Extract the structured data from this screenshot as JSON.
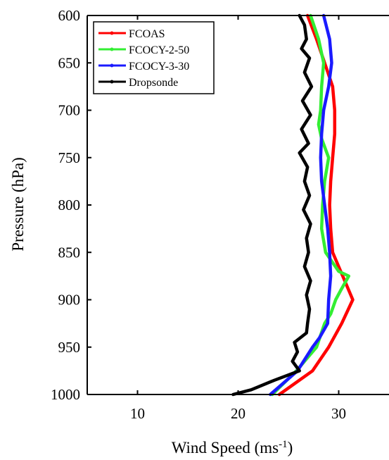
{
  "chart_data": {
    "type": "line",
    "title": "",
    "xlabel": "Wind Speed (ms",
    "xlabel_sup": "-1",
    "xlabel_suffix": ")",
    "ylabel": "Pressure (hPa)",
    "xlim": [
      5,
      35
    ],
    "ylim": [
      1000,
      600
    ],
    "y_reversed": true,
    "xticks": [
      10,
      20,
      30
    ],
    "yticks": [
      600,
      650,
      700,
      750,
      800,
      850,
      900,
      950,
      1000
    ],
    "grid": false,
    "legend_position": "top-left",
    "series": [
      {
        "name": "FCOAS",
        "color": "#ff0000",
        "points": [
          [
            26.9,
            600
          ],
          [
            27.8,
            625
          ],
          [
            28.6,
            650
          ],
          [
            29.4,
            675
          ],
          [
            29.6,
            700
          ],
          [
            29.6,
            725
          ],
          [
            29.4,
            750
          ],
          [
            29.2,
            775
          ],
          [
            29.1,
            800
          ],
          [
            29.2,
            825
          ],
          [
            29.4,
            850
          ],
          [
            30.4,
            875
          ],
          [
            31.4,
            900
          ],
          [
            30.3,
            925
          ],
          [
            29.0,
            950
          ],
          [
            27.4,
            975
          ],
          [
            24.1,
            1000
          ]
        ]
      },
      {
        "name": "FCOCY-2-50",
        "color": "#33ee33",
        "points": [
          [
            27.2,
            600
          ],
          [
            28.0,
            625
          ],
          [
            28.5,
            650
          ],
          [
            28.3,
            675
          ],
          [
            28.2,
            700
          ],
          [
            28.0,
            715
          ],
          [
            28.3,
            730
          ],
          [
            29.0,
            750
          ],
          [
            28.6,
            775
          ],
          [
            28.4,
            800
          ],
          [
            28.3,
            825
          ],
          [
            28.7,
            850
          ],
          [
            30.0,
            870
          ],
          [
            31.0,
            875
          ],
          [
            30.2,
            890
          ],
          [
            29.7,
            900
          ],
          [
            29.2,
            915
          ],
          [
            28.6,
            925
          ],
          [
            27.8,
            950
          ],
          [
            25.8,
            975
          ],
          [
            23.4,
            1000
          ]
        ]
      },
      {
        "name": "FCOCY-3-30",
        "color": "#1a1aff",
        "points": [
          [
            28.5,
            600
          ],
          [
            29.1,
            625
          ],
          [
            29.3,
            650
          ],
          [
            29.0,
            675
          ],
          [
            28.5,
            700
          ],
          [
            28.3,
            725
          ],
          [
            28.2,
            750
          ],
          [
            28.3,
            775
          ],
          [
            28.6,
            800
          ],
          [
            28.9,
            825
          ],
          [
            29.1,
            850
          ],
          [
            29.2,
            875
          ],
          [
            29.0,
            900
          ],
          [
            28.9,
            925
          ],
          [
            28.1,
            940
          ],
          [
            27.4,
            950
          ],
          [
            25.9,
            975
          ],
          [
            23.2,
            1000
          ]
        ]
      },
      {
        "name": "Dropsonde",
        "color": "#000000",
        "points": [
          [
            26.1,
            600
          ],
          [
            26.6,
            610
          ],
          [
            26.8,
            625
          ],
          [
            26.3,
            635
          ],
          [
            27.1,
            645
          ],
          [
            26.6,
            660
          ],
          [
            27.3,
            675
          ],
          [
            26.4,
            690
          ],
          [
            27.2,
            705
          ],
          [
            26.3,
            720
          ],
          [
            27.0,
            735
          ],
          [
            26.1,
            745
          ],
          [
            26.9,
            760
          ],
          [
            26.6,
            775
          ],
          [
            27.1,
            790
          ],
          [
            26.5,
            805
          ],
          [
            27.2,
            820
          ],
          [
            26.8,
            835
          ],
          [
            27.0,
            850
          ],
          [
            26.6,
            865
          ],
          [
            27.2,
            880
          ],
          [
            26.8,
            895
          ],
          [
            27.1,
            910
          ],
          [
            26.9,
            925
          ],
          [
            26.8,
            935
          ],
          [
            25.6,
            945
          ],
          [
            25.9,
            955
          ],
          [
            25.4,
            965
          ],
          [
            26.1,
            975
          ],
          [
            23.6,
            985
          ],
          [
            21.3,
            995
          ],
          [
            19.5,
            1000
          ]
        ]
      }
    ]
  }
}
